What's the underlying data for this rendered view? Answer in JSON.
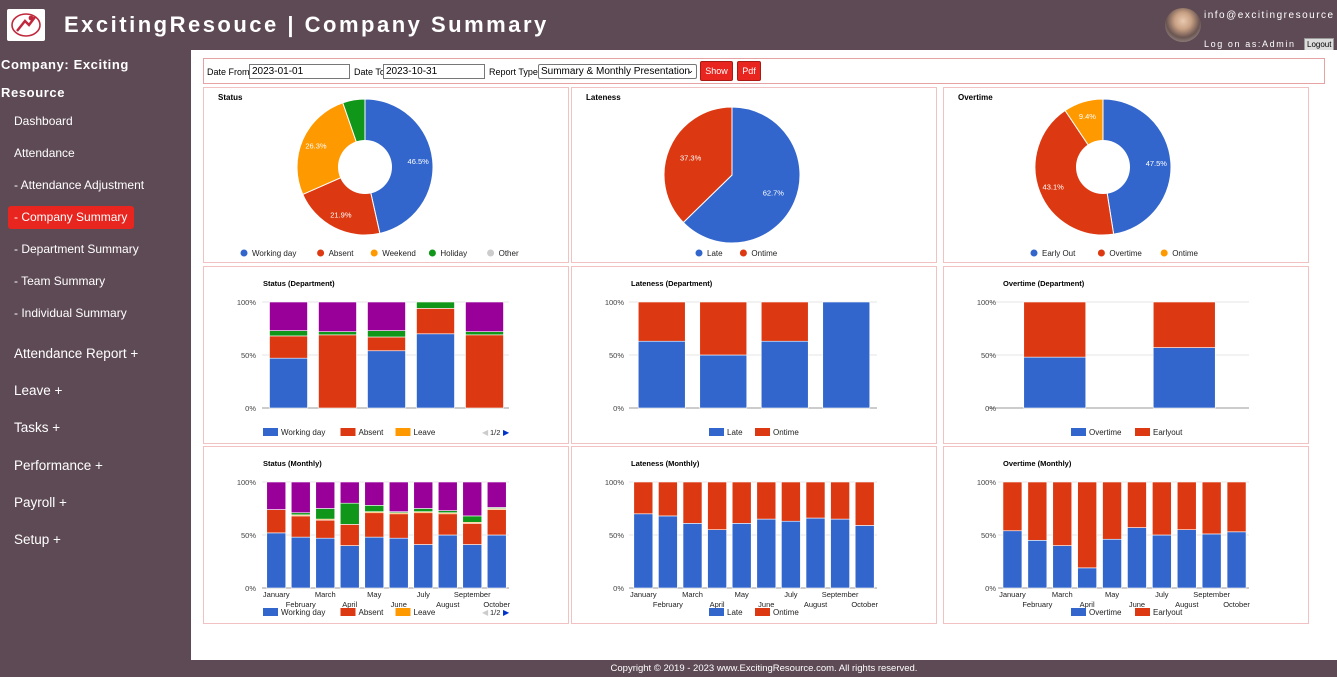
{
  "header": {
    "title": "ExcitingResouce | Company Summary",
    "user_email": "info@excitingresource",
    "user_login": "Log on as:Admin",
    "logout_label": "Logout"
  },
  "sidebar": {
    "company_line1": "Company: Exciting",
    "company_line2": "Resource",
    "items": [
      {
        "label": "Dashboard"
      },
      {
        "label": "Attendance"
      },
      {
        "label": "- Attendance Adjustment"
      },
      {
        "label": "- Company Summary",
        "active": true
      },
      {
        "label": "- Department Summary"
      },
      {
        "label": "- Team Summary"
      },
      {
        "label": "- Individual Summary"
      },
      {
        "label": "Attendance Report +"
      },
      {
        "label": "Leave +"
      },
      {
        "label": "Tasks +"
      },
      {
        "label": "Performance +"
      },
      {
        "label": "Payroll +"
      },
      {
        "label": "Setup +"
      }
    ]
  },
  "filters": {
    "date_from_label": "Date From",
    "date_from_value": "2023-01-01",
    "date_to_label": "Date To",
    "date_to_value": "2023-10-31",
    "report_type_label": "Report Type:",
    "report_type_value": "Summary & Monthly Presentation",
    "show_label": "Show",
    "pdf_label": "Pdf"
  },
  "colors": {
    "blue": "#3366cc",
    "red": "#dc3912",
    "orange": "#ff9900",
    "green": "#109618",
    "purple": "#990099",
    "grey": "#cccccc",
    "accent": "#e8251f"
  },
  "footer": {
    "copyright": "Copyright © 2019 - 2023 www.ExcitingResource.com. All rights reserved."
  },
  "chart_data": [
    {
      "type": "pie",
      "title": "Status",
      "donut": true,
      "slices": [
        {
          "label": "Working day",
          "value": 46.5,
          "display": "46.5%",
          "color": "#3366cc"
        },
        {
          "label": "Absent",
          "value": 21.9,
          "display": "21.9%",
          "color": "#dc3912"
        },
        {
          "label": "Weekend",
          "value": 26.3,
          "display": "26.3%",
          "color": "#ff9900"
        },
        {
          "label": "Holiday",
          "value": 5.3,
          "display": "",
          "color": "#109618"
        },
        {
          "label": "Other",
          "value": 0,
          "display": "",
          "color": "#cccccc"
        }
      ],
      "legend": "bottom"
    },
    {
      "type": "pie",
      "title": "Lateness",
      "donut": false,
      "slices": [
        {
          "label": "Late",
          "value": 62.7,
          "display": "62.7%",
          "color": "#3366cc"
        },
        {
          "label": "Ontime",
          "value": 37.3,
          "display": "37.3%",
          "color": "#dc3912"
        }
      ],
      "legend": "bottom"
    },
    {
      "type": "pie",
      "title": "Overtime",
      "donut": true,
      "slices": [
        {
          "label": "Early Out",
          "value": 47.5,
          "display": "47.5%",
          "color": "#3366cc"
        },
        {
          "label": "Overtime",
          "value": 43.1,
          "display": "43.1%",
          "color": "#dc3912"
        },
        {
          "label": "Ontime",
          "value": 9.4,
          "display": "9.4%",
          "color": "#ff9900"
        }
      ],
      "legend": "bottom"
    },
    {
      "type": "bar",
      "stacked": "percent",
      "title": "Status (Department)",
      "categories": [
        "",
        "",
        "",
        "",
        ""
      ],
      "yticks": [
        "100%",
        "50%",
        "0%"
      ],
      "series": [
        {
          "name": "Working day",
          "color": "#3366cc",
          "values": [
            47,
            0,
            54,
            70,
            0
          ]
        },
        {
          "name": "Absent",
          "color": "#dc3912",
          "values": [
            21,
            69,
            13,
            24,
            69
          ]
        },
        {
          "name": "Leave",
          "color": "#ff9900",
          "values": [
            0,
            0,
            0,
            0,
            0
          ]
        },
        {
          "name": "",
          "color": "#109618",
          "values": [
            5,
            3,
            6,
            6,
            3
          ]
        },
        {
          "name": "",
          "color": "#990099",
          "values": [
            27,
            28,
            27,
            0,
            28
          ]
        }
      ],
      "legend_items": [
        "Working day",
        "Absent",
        "Leave"
      ],
      "pager": "1/2",
      "legend": "bottom"
    },
    {
      "type": "bar",
      "stacked": "percent",
      "title": "Lateness (Department)",
      "categories": [
        "",
        "",
        "",
        ""
      ],
      "yticks": [
        "100%",
        "50%",
        "0%"
      ],
      "series": [
        {
          "name": "Late",
          "color": "#3366cc",
          "values": [
            63,
            50,
            63,
            100
          ]
        },
        {
          "name": "Ontime",
          "color": "#dc3912",
          "values": [
            37,
            50,
            37,
            0
          ]
        }
      ],
      "legend": "bottom"
    },
    {
      "type": "bar",
      "stacked": "percent",
      "title": "Overtime (Department)",
      "categories": [
        "",
        ""
      ],
      "yticks": [
        "100%",
        "50%",
        "0%"
      ],
      "series": [
        {
          "name": "Overtime",
          "color": "#3366cc",
          "values": [
            48,
            57
          ]
        },
        {
          "name": "Earlyout",
          "color": "#dc3912",
          "values": [
            52,
            43
          ]
        }
      ],
      "legend": "bottom"
    },
    {
      "type": "bar",
      "stacked": "percent",
      "title": "Status (Monthly)",
      "categories": [
        "January",
        "February",
        "March",
        "April",
        "May",
        "June",
        "July",
        "August",
        "September",
        "October"
      ],
      "yticks": [
        "100%",
        "50%",
        "0%"
      ],
      "series": [
        {
          "name": "Working day",
          "color": "#3366cc",
          "values": [
            52,
            48,
            47,
            40,
            48,
            47,
            41,
            50,
            41,
            50
          ]
        },
        {
          "name": "Absent",
          "color": "#dc3912",
          "values": [
            22,
            20,
            17,
            20,
            23,
            23,
            30,
            20,
            20,
            24
          ]
        },
        {
          "name": "Leave",
          "color": "#ff9900",
          "values": [
            0,
            1,
            1,
            0,
            1,
            1,
            1,
            1,
            1,
            1
          ]
        },
        {
          "name": "",
          "color": "#109618",
          "values": [
            0,
            2,
            10,
            20,
            6,
            1,
            3,
            2,
            6,
            1
          ]
        },
        {
          "name": "",
          "color": "#990099",
          "values": [
            26,
            29,
            25,
            20,
            22,
            28,
            25,
            27,
            32,
            24
          ]
        }
      ],
      "legend_items": [
        "Working day",
        "Absent",
        "Leave"
      ],
      "pager": "1/2",
      "legend": "bottom"
    },
    {
      "type": "bar",
      "stacked": "percent",
      "title": "Lateness (Monthly)",
      "categories": [
        "January",
        "February",
        "March",
        "April",
        "May",
        "June",
        "July",
        "August",
        "September",
        "October"
      ],
      "yticks": [
        "100%",
        "50%",
        "0%"
      ],
      "series": [
        {
          "name": "Late",
          "color": "#3366cc",
          "values": [
            70,
            68,
            61,
            55,
            61,
            65,
            63,
            66,
            65,
            59
          ]
        },
        {
          "name": "Ontime",
          "color": "#dc3912",
          "values": [
            30,
            32,
            39,
            45,
            39,
            35,
            37,
            34,
            35,
            41
          ]
        }
      ],
      "legend": "bottom"
    },
    {
      "type": "bar",
      "stacked": "percent",
      "title": "Overtime (Monthly)",
      "categories": [
        "January",
        "February",
        "March",
        "April",
        "May",
        "June",
        "July",
        "August",
        "September",
        "October"
      ],
      "yticks": [
        "100%",
        "50%",
        "0%"
      ],
      "series": [
        {
          "name": "Overtime",
          "color": "#3366cc",
          "values": [
            54,
            45,
            40,
            19,
            46,
            57,
            50,
            55,
            51,
            53
          ]
        },
        {
          "name": "Earlyout",
          "color": "#dc3912",
          "values": [
            46,
            55,
            60,
            81,
            54,
            43,
            50,
            45,
            49,
            47
          ]
        }
      ],
      "legend": "bottom"
    }
  ]
}
